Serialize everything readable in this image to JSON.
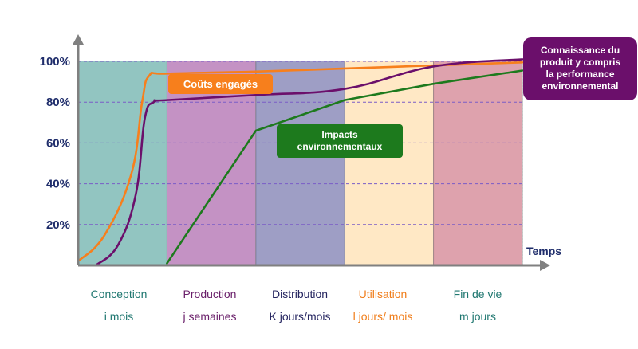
{
  "chart_data": {
    "type": "line",
    "y_ticks": [
      "100%",
      "80%",
      "60%",
      "40%",
      "20%"
    ],
    "y_tick_values": [
      100,
      80,
      60,
      40,
      20
    ],
    "ylim": [
      0,
      100
    ],
    "xlim": [
      0,
      5
    ],
    "xlabel": "Temps",
    "phases": [
      {
        "name": "Conception",
        "duration": "i mois",
        "color": "#4a9e97",
        "text_color": "#1f7770"
      },
      {
        "name": "Production",
        "duration": "j semaines",
        "color": "#9c4a9c",
        "text_color": "#6a1f6a"
      },
      {
        "name": "Distribution",
        "duration": "K jours/mois",
        "color": "#5d5d9e",
        "text_color": "#252560"
      },
      {
        "name": "Utilisation",
        "duration": "l jours/ mois",
        "color": "#ffd89e",
        "text_color": "#f07d1a"
      },
      {
        "name": "Fin de vie",
        "duration": "m jours",
        "color": "#c86477",
        "text_color": "#1f7770"
      }
    ],
    "series": [
      {
        "name": "Coûts engagés",
        "color": "#f77f1c",
        "points": [
          [
            0.0,
            2
          ],
          [
            0.3,
            15
          ],
          [
            0.6,
            45
          ],
          [
            0.72,
            80
          ],
          [
            0.8,
            93
          ],
          [
            1.0,
            94
          ],
          [
            2.0,
            95
          ],
          [
            3.0,
            96.5
          ],
          [
            4.0,
            98
          ],
          [
            5.0,
            99.5
          ]
        ]
      },
      {
        "name": "Impacts environnementaux",
        "color": "#1d7a1d",
        "points": [
          [
            1.0,
            1
          ],
          [
            2.0,
            66
          ],
          [
            3.0,
            81
          ],
          [
            4.0,
            89
          ],
          [
            5.0,
            95.5
          ]
        ]
      },
      {
        "name": "Connaissance du produit y compris la performance environnemental",
        "color": "#6b0f6b",
        "points": [
          [
            0.2,
            0
          ],
          [
            0.45,
            10
          ],
          [
            0.65,
            35
          ],
          [
            0.75,
            72
          ],
          [
            0.85,
            80
          ],
          [
            1.0,
            81
          ],
          [
            2.0,
            83.5
          ],
          [
            3.0,
            86.5
          ],
          [
            4.0,
            97.5
          ],
          [
            5.0,
            101
          ]
        ]
      }
    ]
  },
  "callouts": {
    "cost": "Coûts engagés",
    "impacts": [
      "Impacts",
      "environnementaux"
    ],
    "knowledge": [
      "Connaissance du",
      "produit y compris",
      "la performance",
      "environnemental"
    ]
  },
  "colors": {
    "axis": "#808080",
    "tick_text": "#1f2d6b",
    "grid": "#7a5cc7"
  }
}
